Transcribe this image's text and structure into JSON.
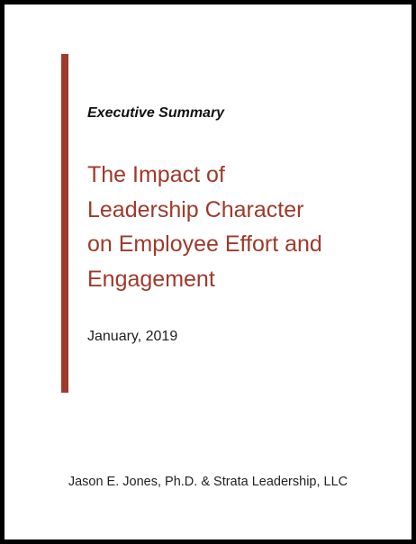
{
  "document": {
    "label": "Executive Summary",
    "title_lines": [
      "The Impact of",
      "Leadership Character",
      "on Employee Effort and",
      "Engagement"
    ],
    "date": "January, 2019",
    "authors": "Jason E. Jones, Ph.D.  &  Strata Leadership, LLC"
  },
  "colors": {
    "accent": "#9e3a2a",
    "border": "#000000"
  }
}
